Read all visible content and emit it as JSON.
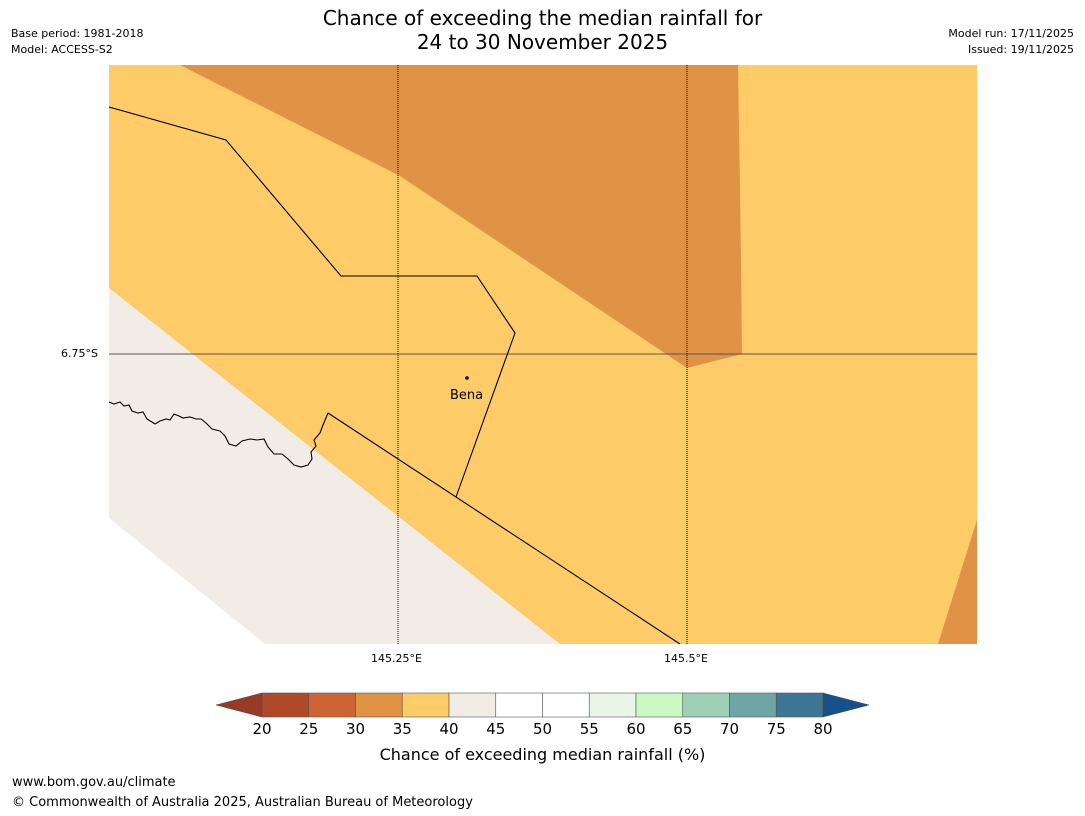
{
  "header": {
    "title_line1": "Chance of exceeding the median rainfall for",
    "title_line2": "24 to 30 November 2025",
    "base_period": "Base period: 1981-2018",
    "model": "Model: ACCESS-S2",
    "model_run": "Model run: 17/11/2025",
    "issued": "Issued: 19/11/2025"
  },
  "map": {
    "lat_label": "6.75°S",
    "lon_labels": [
      "145.25°E",
      "145.5°E"
    ],
    "place_name": "Bena",
    "colors": {
      "band_25_30": "#e09345",
      "band_35_40": "#fdcb68",
      "band_40_45": "#f1ece6",
      "border": "#000000",
      "gridline": "#555555"
    }
  },
  "colorbar": {
    "ticks": [
      "20",
      "25",
      "30",
      "35",
      "40",
      "45",
      "50",
      "55",
      "60",
      "65",
      "70",
      "75",
      "80"
    ],
    "colors": [
      "#ae4a27",
      "#cc6433",
      "#e09345",
      "#fdcb68",
      "#f1ece6",
      "#ffffff",
      "#ffffff",
      "#eaf5e9",
      "#c8f9c5",
      "#9dd0b7",
      "#6fa5a4",
      "#3e7595"
    ],
    "under_color": "#993a27",
    "over_color": "#15508b",
    "label": "Chance of exceeding median rainfall (%)"
  },
  "footer": {
    "url": "www.bom.gov.au/climate",
    "copyright": "© Commonwealth of Australia 2025, Australian Bureau of Meteorology"
  }
}
